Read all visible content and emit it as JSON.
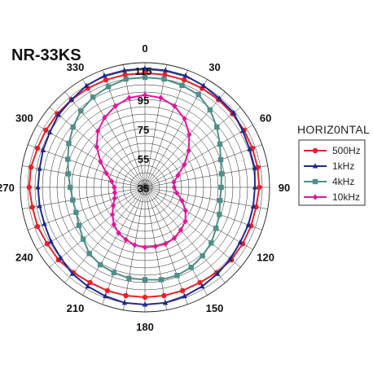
{
  "chart_data": {
    "type": "polar-line",
    "title": "NR-33KS",
    "angle_labels": [
      "0",
      "30",
      "60",
      "90",
      "120",
      "150",
      "180",
      "210",
      "240",
      "270",
      "300",
      "330"
    ],
    "radial_labels": [
      "35",
      "55",
      "75",
      "95",
      "115"
    ],
    "radial_range": [
      35,
      120
    ],
    "legend_title": "HORIZ0NTAL",
    "series": [
      {
        "name": "500Hz",
        "color": "#e8202a",
        "marker": "circle",
        "angles": [
          0,
          10,
          20,
          30,
          40,
          50,
          60,
          70,
          80,
          90,
          100,
          110,
          120,
          130,
          140,
          150,
          160,
          170,
          180,
          190,
          200,
          210,
          220,
          230,
          240,
          250,
          260,
          270,
          280,
          290,
          300,
          310,
          320,
          330,
          340,
          350
        ],
        "values": [
          113,
          113,
          113,
          113,
          113,
          113,
          113,
          113,
          113,
          113,
          112,
          112,
          112,
          112,
          111,
          110,
          110,
          110,
          110,
          110,
          110,
          110,
          111,
          112,
          112,
          113,
          113,
          114,
          114,
          113,
          113,
          113,
          113,
          113,
          113,
          113
        ]
      },
      {
        "name": "1kHz",
        "color": "#1f2a8c",
        "marker": "triangle",
        "angles": [
          0,
          10,
          20,
          30,
          40,
          50,
          60,
          70,
          80,
          90,
          100,
          110,
          120,
          130,
          140,
          150,
          160,
          170,
          180,
          190,
          200,
          210,
          220,
          230,
          240,
          250,
          260,
          270,
          280,
          290,
          300,
          310,
          320,
          330,
          340,
          350
        ],
        "values": [
          116,
          116,
          116,
          115,
          114,
          114,
          112,
          111,
          111,
          110,
          110,
          110,
          110,
          111,
          112,
          113,
          114,
          115,
          115,
          115,
          114,
          113,
          112,
          110,
          109,
          108,
          108,
          108,
          108,
          109,
          110,
          112,
          113,
          115,
          116,
          116
        ]
      },
      {
        "name": "4kHz",
        "color": "#4f8f89",
        "marker": "square",
        "angles": [
          0,
          10,
          20,
          30,
          40,
          50,
          60,
          70,
          80,
          90,
          100,
          110,
          120,
          130,
          140,
          150,
          160,
          170,
          180,
          190,
          200,
          210,
          220,
          230,
          240,
          250,
          260,
          270,
          280,
          290,
          300,
          310,
          320,
          330,
          340,
          350
        ],
        "values": [
          110,
          110,
          109,
          108,
          104,
          99,
          94,
          90,
          88,
          87,
          87,
          89,
          91,
          94,
          96,
          98,
          99,
          99,
          98,
          98,
          97,
          96,
          94,
          90,
          87,
          85,
          85,
          86,
          88,
          91,
          95,
          99,
          103,
          106,
          108,
          110
        ]
      },
      {
        "name": "10kHz",
        "color": "#e0189a",
        "marker": "diamond",
        "angles": [
          0,
          10,
          20,
          30,
          40,
          50,
          60,
          70,
          80,
          90,
          100,
          110,
          120,
          130,
          140,
          150,
          160,
          170,
          180,
          190,
          200,
          210,
          220,
          230,
          240,
          250,
          260,
          270,
          280,
          290,
          300,
          310,
          320,
          330,
          340,
          350
        ],
        "values": [
          98,
          97,
          94,
          89,
          82,
          74,
          66,
          59,
          55,
          55,
          57,
          62,
          67,
          71,
          73,
          75,
          76,
          76,
          76,
          75,
          73,
          71,
          68,
          64,
          60,
          57,
          56,
          56,
          58,
          63,
          70,
          78,
          85,
          90,
          94,
          97
        ]
      }
    ]
  }
}
